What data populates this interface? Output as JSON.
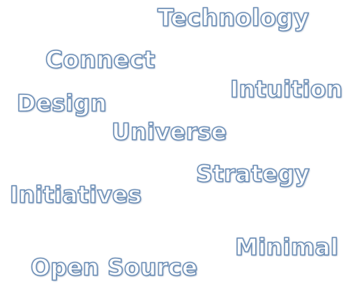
{
  "words": {
    "technology": "Technology",
    "connect": "Connect",
    "intuition": "Intuition",
    "design": "Design",
    "universe": "Universe",
    "strategy": "Strategy",
    "initiatives": "Initiatives",
    "minimal": "Minimal",
    "open_source": "Open Source"
  },
  "colors": {
    "background": "#ffffff",
    "text_fill": "#ffffff",
    "text_outline": "#6d8fb7",
    "text_shadow": "#244a7c"
  }
}
